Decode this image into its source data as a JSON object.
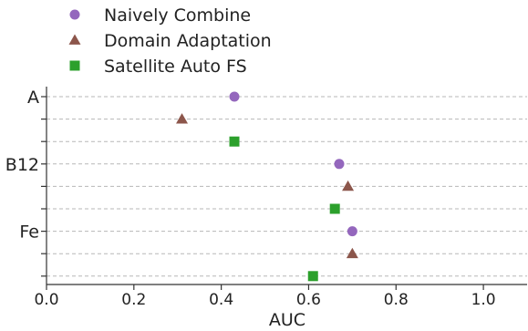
{
  "chart_data": {
    "type": "scatter",
    "xlabel": "AUC",
    "ylabel": "",
    "xlim": [
      0.0,
      1.1
    ],
    "x_ticks": [
      0.0,
      0.2,
      0.4,
      0.6,
      0.8,
      1.0
    ],
    "x_tick_labels": [
      "0.0",
      "0.2",
      "0.4",
      "0.6",
      "0.8",
      "1.0"
    ],
    "categories": [
      "A",
      "B12",
      "Fe"
    ],
    "grid": true,
    "legend_position": "top-left",
    "series": [
      {
        "name": "Naively Combine",
        "marker": "circle",
        "color": "#9467bd",
        "values": [
          0.43,
          0.67,
          0.7
        ]
      },
      {
        "name": "Domain Adaptation",
        "marker": "triangle",
        "color": "#8c564b",
        "values": [
          0.31,
          0.69,
          0.7
        ]
      },
      {
        "name": "Satellite Auto FS",
        "marker": "square",
        "color": "#2ca02c",
        "values": [
          0.43,
          0.66,
          0.61
        ]
      }
    ]
  }
}
